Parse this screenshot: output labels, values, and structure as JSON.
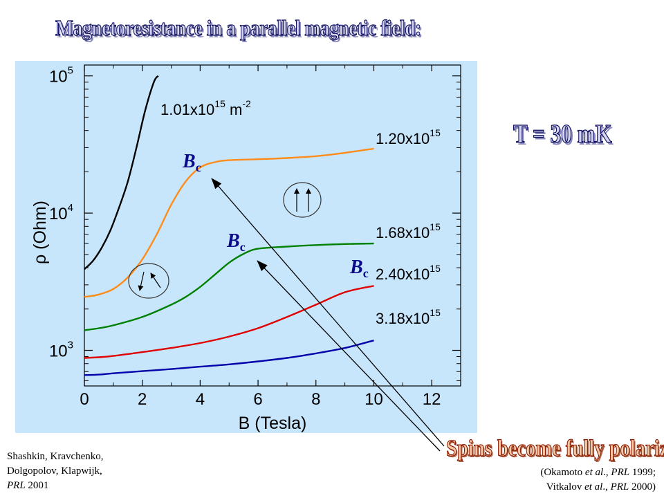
{
  "slide": {
    "title": "Magnetoresistance  in a parallel magnetic  field:",
    "temperature": "T = 30 mK",
    "conclusion": "Spins become fully polarized",
    "ref_left": {
      "line1": "Shashkin, Kravchenko,",
      "line2": "Dolgopolov, Klapwijk,",
      "journal": "PRL",
      "year": " 2001"
    },
    "ref_right": {
      "line1_a": "(Okamoto ",
      "line1_b": "et al",
      "line1_c": "., ",
      "line1_d": "PRL",
      "line1_e": " 1999;",
      "line2_a": "Vitkalov ",
      "line2_b": "et al",
      "line2_c": "., ",
      "line2_d": "PRL",
      "line2_e": " 2000)"
    }
  },
  "colors": {
    "panel": "#c7e6fb",
    "title_fill": "#d6d6f0",
    "title_stroke": "#101060",
    "conclusion_stroke": "#8a1a00",
    "bc_label": "#0a0a8a"
  },
  "chart_data": {
    "type": "line",
    "xlabel": "B (Tesla)",
    "ylabel": "ρ (Ohm)",
    "xlim": [
      0,
      13
    ],
    "ylim": [
      550,
      120000
    ],
    "yscale": "log",
    "xticks": [
      "0",
      "2",
      "4",
      "6",
      "8",
      "10",
      "12"
    ],
    "yticks": [
      {
        "value": 1000,
        "base": "10",
        "exp": "3"
      },
      {
        "value": 10000,
        "base": "10",
        "exp": "4"
      },
      {
        "value": 100000,
        "base": "10",
        "exp": "5"
      }
    ],
    "series": [
      {
        "name": "1.01x10",
        "name_exp": "15",
        "name_unit": " m",
        "name_unit_exp": "-2",
        "color": "#000000",
        "x": [
          0,
          0.3,
          0.6,
          0.9,
          1.2,
          1.5,
          1.8,
          2.1,
          2.4,
          2.55
        ],
        "y": [
          3900,
          4500,
          5600,
          7500,
          11000,
          17000,
          30000,
          56000,
          90000,
          100000
        ]
      },
      {
        "name": "1.20x10",
        "name_exp": "15",
        "color": "#ff8c1a",
        "x": [
          0,
          0.5,
          1,
          1.5,
          2,
          2.5,
          3,
          3.5,
          4,
          4.5,
          5,
          6,
          7,
          8,
          9,
          10
        ],
        "y": [
          2450,
          2550,
          2800,
          3400,
          4600,
          7000,
          11500,
          17000,
          21500,
          23500,
          24300,
          24700,
          25200,
          26000,
          27500,
          29500
        ]
      },
      {
        "name": "1.68x10",
        "name_exp": "15",
        "color": "#008000",
        "x": [
          0,
          0.5,
          1,
          2,
          3,
          3.5,
          4,
          4.5,
          5,
          5.5,
          6,
          7,
          8,
          9,
          10
        ],
        "y": [
          1400,
          1450,
          1520,
          1750,
          2150,
          2450,
          2900,
          3550,
          4350,
          5050,
          5500,
          5700,
          5850,
          5950,
          6000
        ]
      },
      {
        "name": "2.40x10",
        "name_exp": "15",
        "color": "#e00000",
        "x": [
          0,
          0.5,
          1,
          2,
          3,
          4,
          5,
          6,
          7,
          8,
          9,
          10
        ],
        "y": [
          880,
          890,
          910,
          970,
          1040,
          1130,
          1260,
          1450,
          1750,
          2150,
          2650,
          2950
        ]
      },
      {
        "name": "3.18x10",
        "name_exp": "15",
        "color": "#0000aa",
        "x": [
          0,
          0.5,
          1,
          2,
          3,
          4,
          5,
          6,
          7,
          8,
          9,
          10
        ],
        "y": [
          660,
          665,
          680,
          705,
          730,
          760,
          790,
          830,
          880,
          950,
          1040,
          1180
        ]
      }
    ],
    "annotations": [
      {
        "text": "B",
        "sub": "c",
        "at_series": 1,
        "x": 4.0
      },
      {
        "text": "B",
        "sub": "c",
        "at_series": 2,
        "x": 5.8
      },
      {
        "text": "B",
        "sub": "c",
        "at_series": 3,
        "x": 10.0
      }
    ]
  }
}
